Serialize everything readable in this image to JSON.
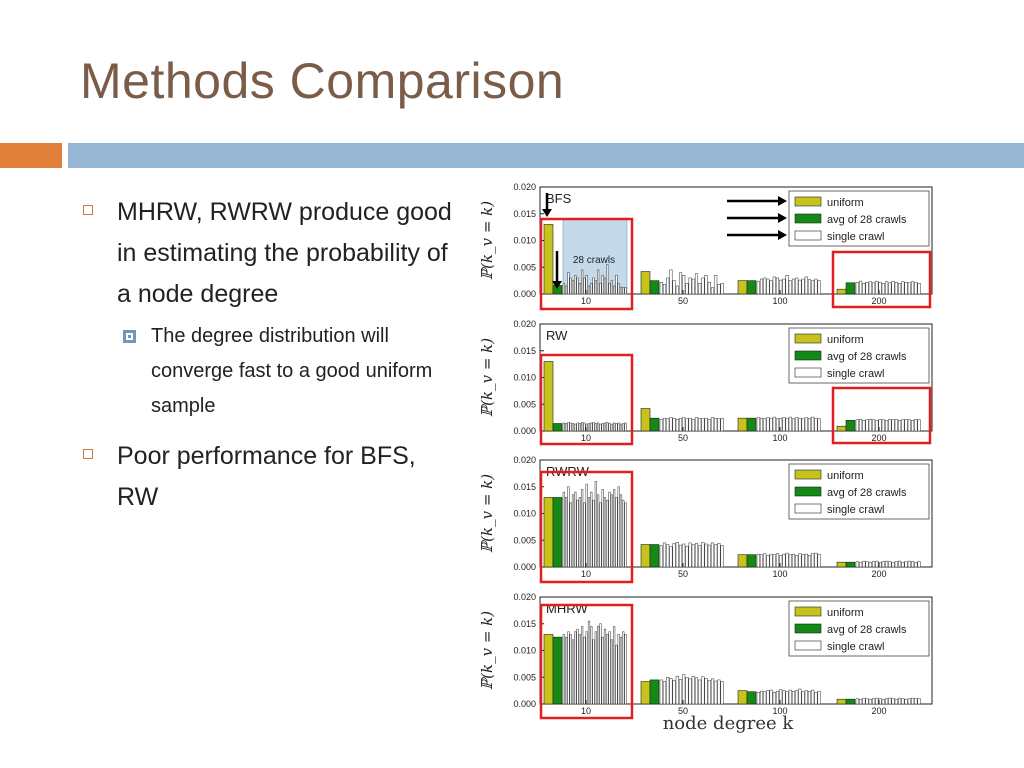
{
  "slide": {
    "title": "Methods Comparison",
    "bullets": [
      {
        "text": "MHRW, RWRW produce good in estimating the probability of a node degree"
      },
      {
        "text": "The degree distribution will converge fast to a good uniform sample",
        "level": 2
      },
      {
        "text": "Poor performance for BFS, RW"
      }
    ]
  },
  "colors": {
    "title": "#7a5c48",
    "accent_bar": "#e07f3a",
    "header_band": "#97b6d3",
    "uniform": "#c8c21c",
    "avg": "#138a13",
    "single": "#ffffff",
    "highlight": "#e02020"
  },
  "chart_data": [
    {
      "type": "bar",
      "panel": "BFS",
      "ylabel": "ℙ(k_v = k)",
      "yticks": [
        "0.000",
        "0.005",
        "0.010",
        "0.015",
        "0.020"
      ],
      "ylim": [
        0,
        0.02
      ],
      "xticks": [
        "10",
        "50",
        "100",
        "200"
      ],
      "legend": [
        "uniform",
        "avg of 28 crawls",
        "single crawl"
      ],
      "legend_position": "top-right",
      "annotation": "28 crawls",
      "groups": [
        {
          "x": "10",
          "uniform": 0.013,
          "avg": 0.0016,
          "single": [
            0.002,
            0.0015,
            0.004,
            0.003,
            0.0025,
            0.0035,
            0.003,
            0.002,
            0.0045,
            0.003,
            0.0035,
            0.0015,
            0.002,
            0.003,
            0.0025,
            0.0045,
            0.002,
            0.0035,
            0.003,
            0.0055,
            0.002,
            0.0025,
            0.0015,
            0.0035,
            0.002,
            0.0013,
            0.0012,
            0.0012
          ]
        },
        {
          "x": "50",
          "uniform": 0.0042,
          "avg": 0.0025,
          "single": [
            0.0022,
            0.0018,
            0.003,
            0.0045,
            0.0025,
            0.0015,
            0.004,
            0.0035,
            0.002,
            0.003,
            0.0028,
            0.0038,
            0.002,
            0.003,
            0.0035,
            0.0022,
            0.0012,
            0.0035,
            0.0018,
            0.002
          ]
        },
        {
          "x": "100",
          "uniform": 0.0025,
          "avg": 0.0025,
          "single": [
            0.0024,
            0.0028,
            0.003,
            0.0028,
            0.0025,
            0.0032,
            0.003,
            0.0026,
            0.0028,
            0.0035,
            0.0025,
            0.0028,
            0.003,
            0.0026,
            0.0028,
            0.0032,
            0.0027,
            0.0025,
            0.0028,
            0.0025
          ]
        },
        {
          "x": "200",
          "uniform": 0.0009,
          "avg": 0.0021,
          "single": [
            0.0022,
            0.0024,
            0.002,
            0.0022,
            0.0023,
            0.0021,
            0.0024,
            0.0022,
            0.002,
            0.0023,
            0.0021,
            0.0024,
            0.0022,
            0.002,
            0.0023,
            0.0022,
            0.0021,
            0.0023,
            0.0022,
            0.002
          ]
        }
      ]
    },
    {
      "type": "bar",
      "panel": "RW",
      "ylabel": "ℙ(k_v = k)",
      "yticks": [
        "0.000",
        "0.005",
        "0.010",
        "0.015",
        "0.020"
      ],
      "ylim": [
        0,
        0.02
      ],
      "xticks": [
        "10",
        "50",
        "100",
        "200"
      ],
      "legend": [
        "uniform",
        "avg of 28 crawls",
        "single crawl"
      ],
      "legend_position": "top-right",
      "groups": [
        {
          "x": "10",
          "uniform": 0.013,
          "avg": 0.0014,
          "single": [
            0.0015,
            0.0014,
            0.0016,
            0.0015,
            0.0014,
            0.0013,
            0.0015,
            0.0014,
            0.0016,
            0.0015,
            0.0013,
            0.0014,
            0.0015,
            0.0016,
            0.0014,
            0.0015,
            0.0013,
            0.0014,
            0.0015,
            0.0016,
            0.0014,
            0.0013,
            0.0015,
            0.0014,
            0.0015,
            0.0013,
            0.0014,
            0.0015
          ]
        },
        {
          "x": "50",
          "uniform": 0.0042,
          "avg": 0.0024,
          "single": [
            0.0022,
            0.0024,
            0.0023,
            0.0025,
            0.0024,
            0.0022,
            0.0024,
            0.0025,
            0.0023,
            0.0024,
            0.0022,
            0.0025,
            0.0024,
            0.0023,
            0.0024,
            0.0022,
            0.0025,
            0.0024,
            0.0023,
            0.0024
          ]
        },
        {
          "x": "100",
          "uniform": 0.0024,
          "avg": 0.0024,
          "single": [
            0.0025,
            0.0024,
            0.0023,
            0.0025,
            0.0024,
            0.0026,
            0.0023,
            0.0024,
            0.0025,
            0.0024,
            0.0026,
            0.0023,
            0.0025,
            0.0024,
            0.0023,
            0.0025,
            0.0024,
            0.0026,
            0.0024,
            0.0023
          ]
        },
        {
          "x": "200",
          "uniform": 0.0009,
          "avg": 0.002,
          "single": [
            0.0021,
            0.0022,
            0.002,
            0.0021,
            0.0022,
            0.0021,
            0.002,
            0.0022,
            0.0021,
            0.002,
            0.0022,
            0.0021,
            0.0022,
            0.002,
            0.0021,
            0.0022,
            0.0021,
            0.002,
            0.0022,
            0.0021
          ]
        }
      ]
    },
    {
      "type": "bar",
      "panel": "RWRW",
      "ylabel": "ℙ(k_v = k)",
      "yticks": [
        "0.000",
        "0.005",
        "0.010",
        "0.015",
        "0.020"
      ],
      "ylim": [
        0,
        0.02
      ],
      "xticks": [
        "10",
        "50",
        "100",
        "200"
      ],
      "legend": [
        "uniform",
        "avg of 28 crawls",
        "single crawl"
      ],
      "legend_position": "top-right",
      "groups": [
        {
          "x": "10",
          "uniform": 0.013,
          "avg": 0.013,
          "single": [
            0.014,
            0.013,
            0.015,
            0.012,
            0.0135,
            0.014,
            0.0125,
            0.013,
            0.0145,
            0.012,
            0.0155,
            0.013,
            0.014,
            0.0125,
            0.016,
            0.0135,
            0.012,
            0.0145,
            0.013,
            0.0125,
            0.014,
            0.0135,
            0.0145,
            0.013,
            0.015,
            0.0135,
            0.0125,
            0.012
          ]
        },
        {
          "x": "50",
          "uniform": 0.0042,
          "avg": 0.0042,
          "single": [
            0.004,
            0.0045,
            0.0042,
            0.0038,
            0.0044,
            0.0046,
            0.0041,
            0.0043,
            0.0039,
            0.0045,
            0.0042,
            0.0044,
            0.004,
            0.0046,
            0.0043,
            0.0041,
            0.0045,
            0.0042,
            0.0044,
            0.004
          ]
        },
        {
          "x": "100",
          "uniform": 0.0023,
          "avg": 0.0023,
          "single": [
            0.0024,
            0.0023,
            0.0025,
            0.0022,
            0.0024,
            0.0023,
            0.0025,
            0.0022,
            0.0024,
            0.0026,
            0.0023,
            0.0024,
            0.0022,
            0.0025,
            0.0023,
            0.0024,
            0.0022,
            0.0025,
            0.0026,
            0.0024
          ]
        },
        {
          "x": "200",
          "uniform": 0.0009,
          "avg": 0.0009,
          "single": [
            0.001,
            0.0009,
            0.0011,
            0.001,
            0.0009,
            0.001,
            0.0011,
            0.0009,
            0.001,
            0.0011,
            0.001,
            0.0009,
            0.001,
            0.0011,
            0.0009,
            0.001,
            0.0011,
            0.001,
            0.0009,
            0.001
          ]
        }
      ]
    },
    {
      "type": "bar",
      "panel": "MHRW",
      "ylabel": "ℙ(k_v = k)",
      "xlabel": "node degree k",
      "yticks": [
        "0.000",
        "0.005",
        "0.010",
        "0.015",
        "0.020"
      ],
      "ylim": [
        0,
        0.02
      ],
      "xticks": [
        "10",
        "50",
        "100",
        "200"
      ],
      "legend": [
        "uniform",
        "avg of 28 crawls",
        "single crawl"
      ],
      "legend_position": "top-right",
      "groups": [
        {
          "x": "10",
          "uniform": 0.013,
          "avg": 0.0125,
          "single": [
            0.013,
            0.0125,
            0.0135,
            0.013,
            0.012,
            0.0135,
            0.014,
            0.013,
            0.0145,
            0.0125,
            0.0135,
            0.0155,
            0.0145,
            0.012,
            0.0135,
            0.0145,
            0.015,
            0.0125,
            0.014,
            0.013,
            0.0135,
            0.012,
            0.0145,
            0.011,
            0.013,
            0.0125,
            0.0135,
            0.013
          ]
        },
        {
          "x": "50",
          "uniform": 0.0042,
          "avg": 0.0045,
          "single": [
            0.0045,
            0.0042,
            0.005,
            0.0048,
            0.0044,
            0.0052,
            0.0046,
            0.0055,
            0.005,
            0.0047,
            0.0052,
            0.0049,
            0.0045,
            0.0051,
            0.0048,
            0.0044,
            0.0047,
            0.0043,
            0.0045,
            0.0042
          ]
        },
        {
          "x": "100",
          "uniform": 0.0025,
          "avg": 0.0023,
          "single": [
            0.0022,
            0.0024,
            0.0023,
            0.0025,
            0.0026,
            0.0022,
            0.0024,
            0.0027,
            0.0025,
            0.0023,
            0.0026,
            0.0024,
            0.0025,
            0.0028,
            0.0023,
            0.0025,
            0.0024,
            0.0026,
            0.0022,
            0.0024
          ]
        },
        {
          "x": "200",
          "uniform": 0.0009,
          "avg": 0.0009,
          "single": [
            0.001,
            0.0009,
            0.0011,
            0.001,
            0.0009,
            0.001,
            0.0011,
            0.001,
            0.0009,
            0.001,
            0.0011,
            0.001,
            0.0009,
            0.0011,
            0.001,
            0.0009,
            0.001,
            0.0011,
            0.001,
            0.001
          ]
        }
      ]
    }
  ]
}
